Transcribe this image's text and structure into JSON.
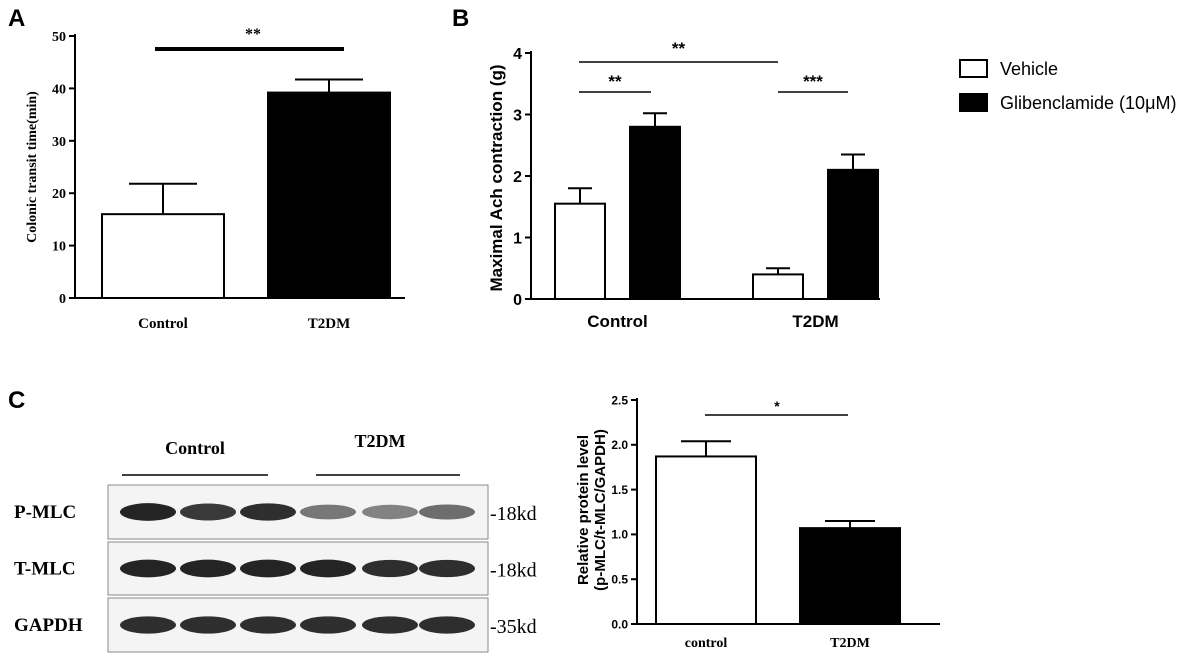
{
  "panel_labels": {
    "a": "A",
    "b": "B",
    "c": "C"
  },
  "legend": [
    {
      "label": "Vehicle",
      "color": "#ffffff"
    },
    {
      "label": "Glibenclamide (10μM)",
      "color": "#000000"
    }
  ],
  "blot": {
    "group_labels": [
      "Control",
      "T2DM"
    ],
    "rows": [
      {
        "label": "P-MLC",
        "size": "-18kd",
        "intensities": [
          0.95,
          0.85,
          0.9,
          0.55,
          0.5,
          0.6
        ]
      },
      {
        "label": "T-MLC",
        "size": "-18kd",
        "intensities": [
          0.95,
          0.95,
          0.95,
          0.95,
          0.9,
          0.9
        ]
      },
      {
        "label": "GAPDH",
        "size": "-35kd",
        "intensities": [
          0.9,
          0.9,
          0.9,
          0.9,
          0.9,
          0.9
        ]
      }
    ]
  },
  "chart_data": [
    {
      "panel": "A",
      "type": "bar",
      "categories": [
        "Control",
        "T2DM"
      ],
      "values": [
        16,
        39.2
      ],
      "errors": [
        5.8,
        2.5
      ],
      "colors": [
        "#ffffff",
        "#000000"
      ],
      "ylabel": "Colonic transit time(min)",
      "xlabel": "",
      "ylim": [
        0,
        50
      ],
      "yticks": [
        "0",
        "10",
        "20",
        "30",
        "40",
        "50"
      ],
      "significance": [
        {
          "from": 0,
          "to": 1,
          "label": "**"
        }
      ],
      "grid": false
    },
    {
      "panel": "B",
      "type": "bar",
      "categories": [
        "Control",
        "T2DM"
      ],
      "series": [
        {
          "values": [
            1.55,
            0.4
          ],
          "errors": [
            0.25,
            0.1
          ],
          "color": "#ffffff"
        },
        {
          "values": [
            2.8,
            2.1
          ],
          "errors": [
            0.22,
            0.25
          ],
          "color": "#000000"
        }
      ],
      "ylabel": "Maximal Ach contraction (g)",
      "xlabel": "",
      "ylim": [
        0,
        4
      ],
      "yticks": [
        "0",
        "1",
        "2",
        "3",
        "4"
      ],
      "significance": [
        {
          "from": [
            0,
            0
          ],
          "to": [
            0,
            1
          ],
          "label": "**"
        },
        {
          "from": [
            1,
            0
          ],
          "to": [
            1,
            1
          ],
          "label": "***"
        },
        {
          "from": [
            0,
            0
          ],
          "to": [
            1,
            0
          ],
          "label": "**"
        }
      ],
      "legend_position": "right",
      "grid": false
    },
    {
      "panel": "C",
      "type": "bar",
      "categories": [
        "control",
        "T2DM"
      ],
      "values": [
        1.87,
        1.07
      ],
      "errors": [
        0.17,
        0.08
      ],
      "colors": [
        "#ffffff",
        "#000000"
      ],
      "ylabel_lines": [
        "Relative protein level",
        "(p-MLC/t-MLC/GAPDH)"
      ],
      "xlabel": "",
      "ylim": [
        0,
        2.5
      ],
      "yticks": [
        "0.0",
        "0.5",
        "1.0",
        "1.5",
        "2.0",
        "2.5"
      ],
      "significance": [
        {
          "from": 0,
          "to": 1,
          "label": "*"
        }
      ],
      "grid": false
    }
  ]
}
